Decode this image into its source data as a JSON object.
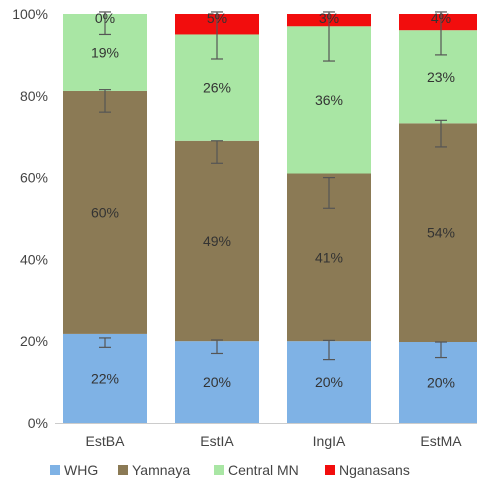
{
  "chart_data": {
    "type": "bar",
    "stacked": true,
    "categories": [
      "EstBA",
      "EstIA",
      "IngIA",
      "EstMA"
    ],
    "series": [
      {
        "name": "WHG",
        "color": "#7FB2E5",
        "values": [
          22,
          20,
          20,
          20
        ],
        "labels": [
          "22%",
          "20%",
          "20%",
          "20%"
        ],
        "err_low": [
          18.5,
          17,
          15.5,
          16
        ],
        "err_high": [
          20.8,
          20.3,
          20.2,
          19.8
        ]
      },
      {
        "name": "Yamnaya",
        "color": "#8B7A55",
        "values": [
          60,
          49,
          41,
          54
        ],
        "labels": [
          "60%",
          "49%",
          "41%",
          "54%"
        ],
        "err_low": [
          76,
          63.5,
          52.5,
          67.5
        ],
        "err_high": [
          81.5,
          69,
          60,
          74
        ]
      },
      {
        "name": "Central MN",
        "color": "#A9E6A4",
        "values": [
          19,
          26,
          36,
          23
        ],
        "labels": [
          "19%",
          "26%",
          "36%",
          "23%"
        ],
        "err_low": [
          95,
          89,
          88.5,
          90
        ],
        "err_high": [
          100.5,
          100.5,
          100.5,
          100.5
        ]
      },
      {
        "name": "Nganasans",
        "color": "#F20D0D",
        "values": [
          0,
          5,
          3,
          4
        ],
        "labels": [
          "0%",
          "5%",
          "3%",
          "4%"
        ]
      }
    ],
    "totals": [
      100,
      100,
      100,
      100
    ],
    "yticks": [
      "0%",
      "20%",
      "40%",
      "60%",
      "80%",
      "100%"
    ],
    "ylim": [
      0,
      100
    ],
    "legend": "bottom",
    "grid": false
  }
}
